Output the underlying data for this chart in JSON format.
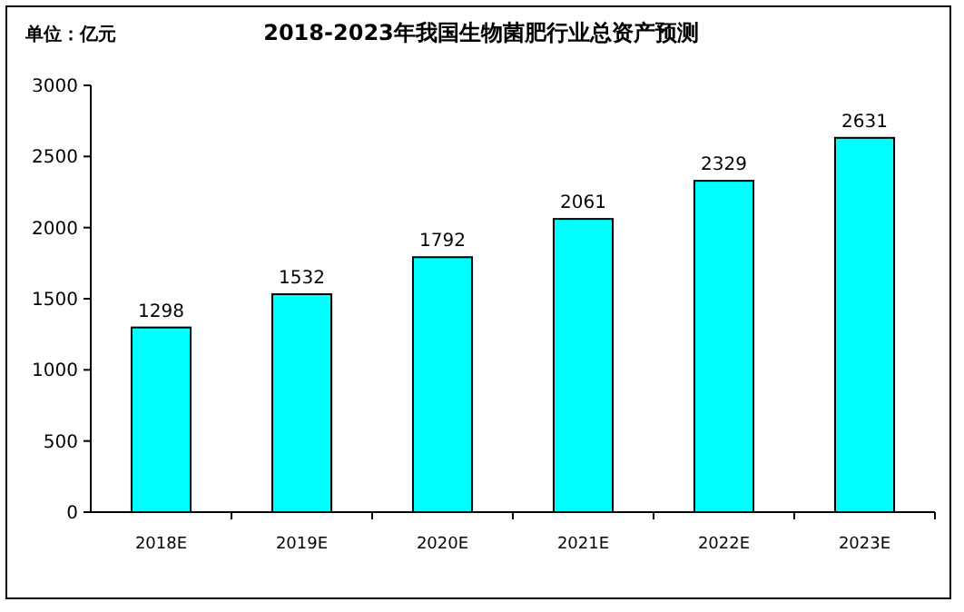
{
  "chart_data": {
    "type": "bar",
    "title": "2018-2023年我国生物菌肥行业总资产预测",
    "ylabel": "单位：亿元",
    "categories": [
      "2018E",
      "2019E",
      "2020E",
      "2021E",
      "2022E",
      "2023E"
    ],
    "values": [
      1298,
      1532,
      1792,
      2061,
      2329,
      2631
    ],
    "color": "#00ffff",
    "ylim": [
      0,
      3000
    ],
    "yticks": [
      0,
      500,
      1000,
      1500,
      2000,
      2500,
      3000
    ],
    "data_labels": true
  }
}
